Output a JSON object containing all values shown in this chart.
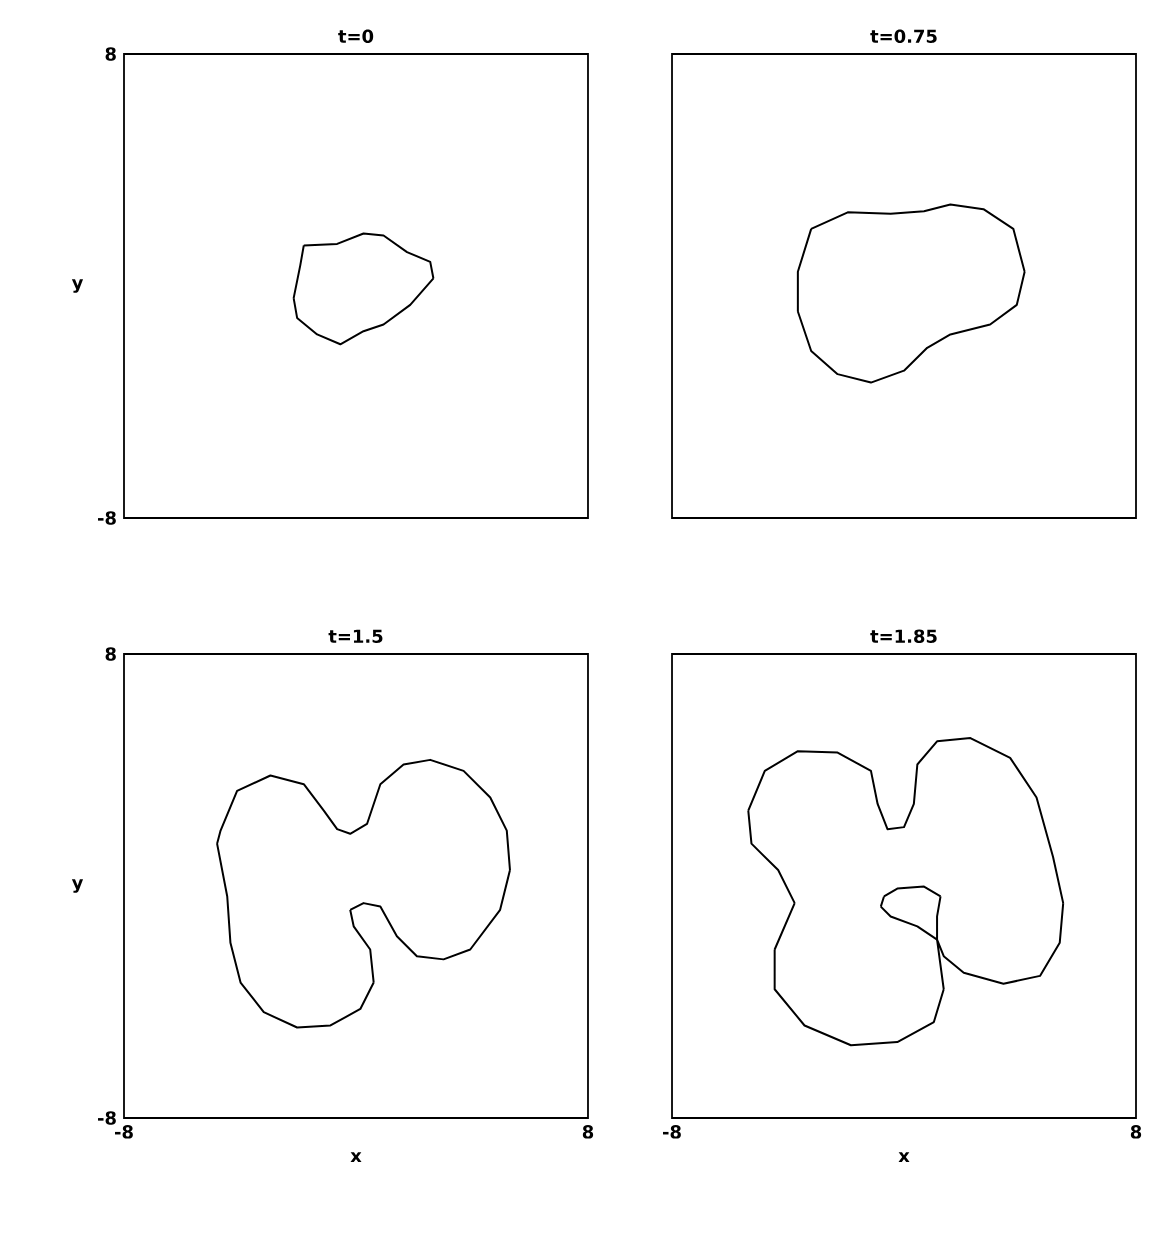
{
  "chart_data": [
    {
      "type": "line",
      "title": "t=0",
      "ylabel": "y",
      "xlim": [
        -8,
        8
      ],
      "ylim": [
        -8,
        8
      ],
      "xticks": [
        -8,
        8
      ],
      "yticks": [
        -8,
        8
      ],
      "tick_labels": "y",
      "series": [
        {
          "color": "#000000",
          "x": [
            -1.8,
            -0.65,
            0.26,
            0.95,
            1.76,
            2.56,
            2.67,
            null,
            2.67,
            1.87,
            0.95,
            0.26,
            -0.54,
            -1.34,
            -2.03,
            -2.15,
            null,
            -2.15,
            -1.92,
            -1.8
          ],
          "values": [
            1.4,
            1.45,
            1.81,
            1.74,
            1.17,
            0.83,
            0.26,
            null,
            0.26,
            -0.65,
            -1.33,
            -1.56,
            -2.01,
            -1.67,
            -1.1,
            -0.42,
            null,
            -0.42,
            0.72,
            1.4
          ]
        }
      ]
    },
    {
      "type": "line",
      "title": "t=0.75",
      "xlim": [
        -8,
        8
      ],
      "ylim": [
        -8,
        8
      ],
      "xticks": [
        -8,
        8
      ],
      "yticks": [
        -8,
        8
      ],
      "tick_labels": false,
      "series": [
        {
          "color": "#000000",
          "x": [
            -3.2,
            -1.94,
            -0.46,
            0.69,
            1.6,
            2.74,
            3.77,
            4.16,
            null,
            4.16,
            3.89,
            2.97,
            1.6,
            0.8,
            0.0,
            -1.14,
            -2.29,
            -3.2,
            -3.66,
            null,
            -3.66,
            -3.66,
            -3.2
          ],
          "values": [
            1.97,
            2.54,
            2.49,
            2.58,
            2.81,
            2.65,
            1.97,
            0.49,
            null,
            0.49,
            -0.65,
            -1.33,
            -1.67,
            -2.13,
            -2.92,
            -3.33,
            -3.04,
            -2.24,
            -0.88,
            null,
            -0.88,
            0.49,
            1.97
          ]
        }
      ]
    },
    {
      "type": "line",
      "title": "t=1.5",
      "xlabel": "x",
      "ylabel": "y",
      "xlim": [
        -8,
        8
      ],
      "ylim": [
        -8,
        8
      ],
      "xticks": [
        -8,
        8
      ],
      "yticks": [
        -8,
        8
      ],
      "series": [
        {
          "color": "#000000",
          "x": [
            -4.67,
            -4.1,
            -2.95,
            -1.8,
            -1.11,
            -0.65,
            -0.2,
            0.38,
            0.84,
            1.64,
            2.56,
            3.71,
            4.63,
            5.2,
            5.31,
            null,
            5.31,
            4.97,
            3.94,
            3.02,
            2.1,
            1.41,
            0.84,
            0.26,
            -0.2,
            null,
            -0.2,
            -0.08,
            0.49,
            0.61,
            null,
            0.61,
            0.15,
            -0.88,
            -2.03,
            -3.18,
            -3.98,
            -4.33,
            -4.44,
            -4.79,
            null,
            -4.79,
            -4.67
          ],
          "values": [
            1.91,
            3.28,
            3.81,
            3.51,
            2.6,
            1.96,
            1.8,
            2.14,
            3.51,
            4.19,
            4.35,
            3.97,
            3.05,
            1.91,
            0.55,
            null,
            0.55,
            -0.82,
            -2.19,
            -2.53,
            -2.42,
            -1.73,
            -0.71,
            -0.59,
            -0.82,
            null,
            -0.82,
            -1.39,
            -2.19,
            -3.33,
            null,
            -3.33,
            -4.24,
            -4.81,
            -4.88,
            -4.35,
            -3.33,
            -1.96,
            -0.36,
            1.46,
            null,
            1.46,
            1.91
          ]
        }
      ]
    },
    {
      "type": "line",
      "title": "t=1.85",
      "xlabel": "x",
      "xlim": [
        -8,
        8
      ],
      "ylim": [
        -8,
        8
      ],
      "xticks": [
        -8,
        8
      ],
      "yticks": [
        -8,
        8
      ],
      "tick_labels": "x",
      "series": [
        {
          "color": "#000000",
          "x": [
            -5.37,
            -4.8,
            -3.66,
            -2.29,
            -1.14,
            -0.91,
            -0.57,
            0.0,
            0.34,
            0.46,
            1.14,
            2.29,
            3.66,
            4.57,
            5.14,
            5.49,
            null,
            5.49,
            5.37,
            4.69,
            3.43,
            2.06,
            1.37,
            1.14,
            null,
            1.14,
            1.37,
            null,
            1.37,
            1.03,
            -0.23,
            -1.83,
            -3.43,
            -4.46,
            -4.46,
            null,
            -4.46,
            -3.77,
            null,
            -3.77,
            -4.34,
            -5.26,
            -5.37
          ],
          "values": [
            2.6,
            3.97,
            4.65,
            4.6,
            3.97,
            2.83,
            1.96,
            2.03,
            2.83,
            4.19,
            4.99,
            5.1,
            4.42,
            3.05,
            1.0,
            -0.59,
            null,
            -0.59,
            -1.96,
            -3.1,
            -3.37,
            -2.99,
            -2.42,
            -1.85,
            null,
            -1.85,
            -3.56,
            null,
            -3.56,
            -4.69,
            -5.38,
            -5.49,
            -4.81,
            -3.56,
            -2.19,
            null,
            -2.19,
            -0.59,
            null,
            -0.59,
            0.55,
            1.46,
            2.6
          ]
        },
        {
          "color": "#000000",
          "x": [
            -0.69,
            -0.23,
            0.69,
            1.26,
            null,
            1.26,
            1.14,
            1.14,
            0.46,
            -0.46,
            -0.8,
            null,
            -0.8,
            -0.69
          ],
          "values": [
            -0.36,
            -0.09,
            -0.02,
            -0.36,
            null,
            -0.36,
            -1.05,
            -1.85,
            -1.39,
            -1.05,
            -0.71,
            null,
            -0.71,
            -0.36
          ]
        }
      ]
    }
  ]
}
